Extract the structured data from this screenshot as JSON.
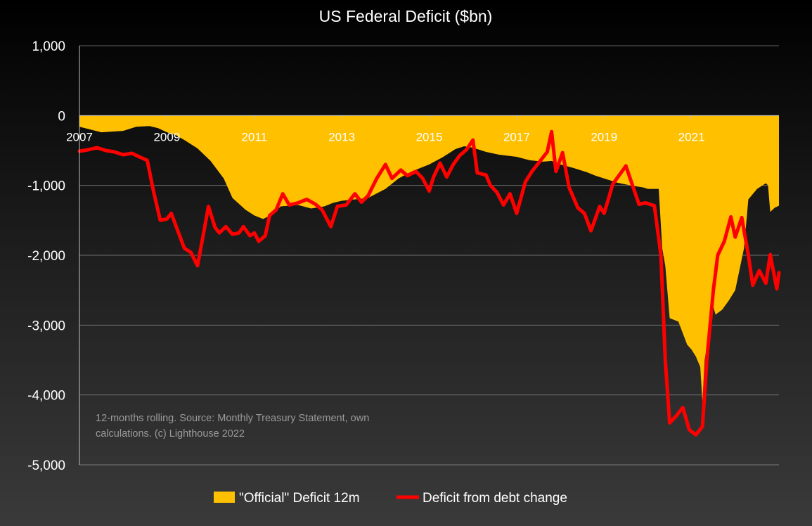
{
  "chart_data": {
    "type": "area",
    "title": "US Federal Deficit ($bn)",
    "ylim": [
      -5000,
      1000
    ],
    "yticks": [
      1000,
      0,
      -1000,
      -2000,
      -3000,
      -4000,
      -5000
    ],
    "ytick_labels": [
      "1,000",
      "0",
      "-1,000",
      "-2,000",
      "-3,000",
      "-4,000",
      "-5,000"
    ],
    "xlim": [
      2007.0,
      2023.0
    ],
    "xticks": [
      2007,
      2009,
      2011,
      2013,
      2015,
      2017,
      2019,
      2021
    ],
    "xtick_labels": [
      "2007",
      "2009",
      "2011",
      "2013",
      "2015",
      "2017",
      "2019",
      "2021"
    ],
    "grid": true,
    "legend_position": "bottom",
    "annotation": "12-months rolling. Source: Monthly Treasury Statement, own calculations. (c) Lighthouse 2022",
    "series": [
      {
        "name": "\"Official\" Deficit 12m",
        "type": "area",
        "color": "#FFC000",
        "points": [
          [
            2007.0,
            -160
          ],
          [
            2007.5,
            -240
          ],
          [
            2008.0,
            -220
          ],
          [
            2008.3,
            -160
          ],
          [
            2008.6,
            -150
          ],
          [
            2008.8,
            -180
          ],
          [
            2009.0,
            -240
          ],
          [
            2009.2,
            -280
          ],
          [
            2009.4,
            -350
          ],
          [
            2009.7,
            -470
          ],
          [
            2010.0,
            -650
          ],
          [
            2010.3,
            -900
          ],
          [
            2010.5,
            -1180
          ],
          [
            2010.8,
            -1350
          ],
          [
            2011.0,
            -1430
          ],
          [
            2011.2,
            -1480
          ],
          [
            2011.4,
            -1420
          ],
          [
            2011.6,
            -1300
          ],
          [
            2012.0,
            -1280
          ],
          [
            2012.3,
            -1330
          ],
          [
            2012.6,
            -1300
          ],
          [
            2012.8,
            -1250
          ],
          [
            2013.0,
            -1220
          ],
          [
            2013.3,
            -1200
          ],
          [
            2013.6,
            -1180
          ],
          [
            2014.0,
            -1050
          ],
          [
            2014.3,
            -900
          ],
          [
            2014.6,
            -800
          ],
          [
            2015.0,
            -700
          ],
          [
            2015.3,
            -600
          ],
          [
            2015.6,
            -480
          ],
          [
            2015.8,
            -440
          ],
          [
            2016.0,
            -460
          ],
          [
            2016.3,
            -520
          ],
          [
            2016.6,
            -560
          ],
          [
            2017.0,
            -590
          ],
          [
            2017.3,
            -640
          ],
          [
            2017.6,
            -660
          ],
          [
            2017.8,
            -650
          ],
          [
            2018.0,
            -700
          ],
          [
            2018.3,
            -750
          ],
          [
            2018.6,
            -810
          ],
          [
            2018.8,
            -860
          ],
          [
            2019.0,
            -900
          ],
          [
            2019.3,
            -960
          ],
          [
            2019.6,
            -1000
          ],
          [
            2019.9,
            -1030
          ],
          [
            2020.0,
            -1050
          ],
          [
            2020.25,
            -1050
          ],
          [
            2020.33,
            -1900
          ],
          [
            2020.4,
            -2150
          ],
          [
            2020.5,
            -2900
          ],
          [
            2020.7,
            -2950
          ],
          [
            2020.9,
            -3280
          ],
          [
            2021.0,
            -3350
          ],
          [
            2021.1,
            -3450
          ],
          [
            2021.2,
            -3600
          ],
          [
            2021.25,
            -4100
          ],
          [
            2021.3,
            -3500
          ],
          [
            2021.35,
            -3300
          ],
          [
            2021.4,
            -3300
          ],
          [
            2021.45,
            -2630
          ],
          [
            2021.55,
            -2850
          ],
          [
            2021.7,
            -2780
          ],
          [
            2021.85,
            -2650
          ],
          [
            2022.0,
            -2500
          ],
          [
            2022.1,
            -2200
          ],
          [
            2022.2,
            -1900
          ],
          [
            2022.3,
            -1200
          ],
          [
            2022.5,
            -1050
          ],
          [
            2022.7,
            -970
          ],
          [
            2022.75,
            -1000
          ],
          [
            2022.8,
            -1380
          ],
          [
            2022.9,
            -1320
          ],
          [
            2023.0,
            -1290
          ]
        ]
      },
      {
        "name": "Deficit from debt change",
        "type": "line",
        "color": "#FF0000",
        "points": [
          [
            2007.0,
            -510
          ],
          [
            2007.2,
            -490
          ],
          [
            2007.4,
            -460
          ],
          [
            2007.6,
            -500
          ],
          [
            2007.8,
            -520
          ],
          [
            2008.0,
            -560
          ],
          [
            2008.2,
            -540
          ],
          [
            2008.4,
            -600
          ],
          [
            2008.55,
            -640
          ],
          [
            2008.7,
            -1100
          ],
          [
            2008.85,
            -1500
          ],
          [
            2009.0,
            -1480
          ],
          [
            2009.1,
            -1400
          ],
          [
            2009.25,
            -1650
          ],
          [
            2009.4,
            -1900
          ],
          [
            2009.55,
            -1960
          ],
          [
            2009.7,
            -2150
          ],
          [
            2009.85,
            -1650
          ],
          [
            2009.95,
            -1300
          ],
          [
            2010.1,
            -1600
          ],
          [
            2010.2,
            -1680
          ],
          [
            2010.35,
            -1590
          ],
          [
            2010.5,
            -1700
          ],
          [
            2010.65,
            -1680
          ],
          [
            2010.75,
            -1590
          ],
          [
            2010.9,
            -1720
          ],
          [
            2011.0,
            -1680
          ],
          [
            2011.1,
            -1800
          ],
          [
            2011.25,
            -1720
          ],
          [
            2011.35,
            -1430
          ],
          [
            2011.5,
            -1350
          ],
          [
            2011.65,
            -1120
          ],
          [
            2011.8,
            -1280
          ],
          [
            2012.0,
            -1250
          ],
          [
            2012.2,
            -1200
          ],
          [
            2012.4,
            -1270
          ],
          [
            2012.55,
            -1350
          ],
          [
            2012.75,
            -1590
          ],
          [
            2012.9,
            -1300
          ],
          [
            2013.1,
            -1280
          ],
          [
            2013.3,
            -1120
          ],
          [
            2013.45,
            -1240
          ],
          [
            2013.6,
            -1150
          ],
          [
            2013.8,
            -900
          ],
          [
            2014.0,
            -700
          ],
          [
            2014.15,
            -900
          ],
          [
            2014.35,
            -780
          ],
          [
            2014.5,
            -860
          ],
          [
            2014.7,
            -800
          ],
          [
            2014.85,
            -900
          ],
          [
            2015.0,
            -1080
          ],
          [
            2015.1,
            -880
          ],
          [
            2015.25,
            -680
          ],
          [
            2015.4,
            -880
          ],
          [
            2015.55,
            -700
          ],
          [
            2015.7,
            -570
          ],
          [
            2015.85,
            -490
          ],
          [
            2016.0,
            -350
          ],
          [
            2016.1,
            -820
          ],
          [
            2016.3,
            -850
          ],
          [
            2016.4,
            -1000
          ],
          [
            2016.55,
            -1100
          ],
          [
            2016.7,
            -1280
          ],
          [
            2016.85,
            -1120
          ],
          [
            2017.0,
            -1400
          ],
          [
            2017.2,
            -950
          ],
          [
            2017.35,
            -800
          ],
          [
            2017.5,
            -680
          ],
          [
            2017.7,
            -520
          ],
          [
            2017.8,
            -230
          ],
          [
            2017.9,
            -800
          ],
          [
            2018.05,
            -530
          ],
          [
            2018.2,
            -1030
          ],
          [
            2018.4,
            -1320
          ],
          [
            2018.55,
            -1400
          ],
          [
            2018.7,
            -1650
          ],
          [
            2018.9,
            -1300
          ],
          [
            2019.0,
            -1400
          ],
          [
            2019.2,
            -980
          ],
          [
            2019.35,
            -850
          ],
          [
            2019.5,
            -720
          ],
          [
            2019.65,
            -1000
          ],
          [
            2019.8,
            -1270
          ],
          [
            2019.95,
            -1250
          ],
          [
            2020.15,
            -1290
          ],
          [
            2020.3,
            -2000
          ],
          [
            2020.4,
            -3500
          ],
          [
            2020.5,
            -4400
          ],
          [
            2020.65,
            -4300
          ],
          [
            2020.8,
            -4180
          ],
          [
            2020.95,
            -4500
          ],
          [
            2021.1,
            -4570
          ],
          [
            2021.25,
            -4450
          ],
          [
            2021.35,
            -3500
          ],
          [
            2021.5,
            -2500
          ],
          [
            2021.6,
            -2000
          ],
          [
            2021.75,
            -1800
          ],
          [
            2021.9,
            -1450
          ],
          [
            2022.0,
            -1740
          ],
          [
            2022.15,
            -1460
          ],
          [
            2022.3,
            -2000
          ],
          [
            2022.4,
            -2430
          ],
          [
            2022.55,
            -2220
          ],
          [
            2022.7,
            -2400
          ],
          [
            2022.8,
            -1990
          ],
          [
            2022.95,
            -2480
          ],
          [
            2023.0,
            -2250
          ]
        ]
      }
    ]
  }
}
